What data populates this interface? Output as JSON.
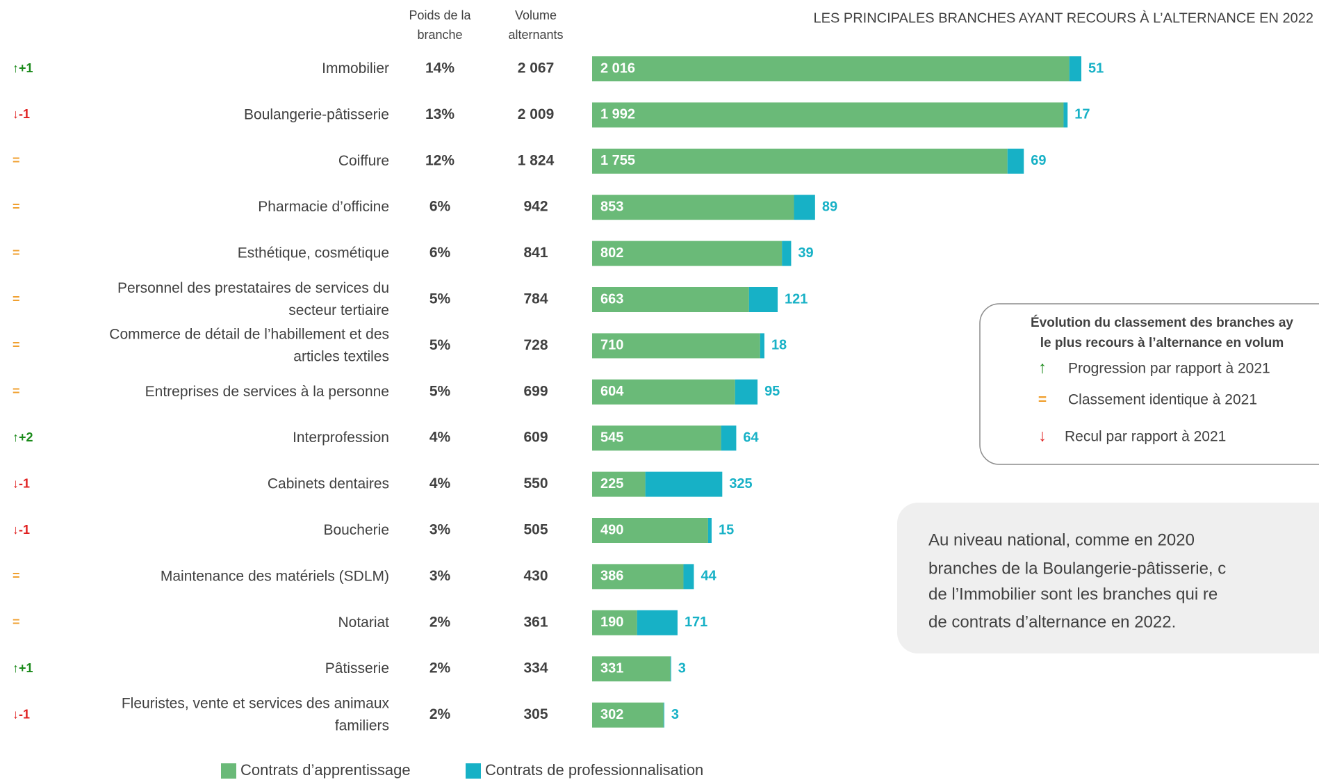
{
  "chart_data": {
    "type": "bar",
    "title": "LES PRINCIPALES BRANCHES AYANT RECOURS À L’ALTERNANCE EN 2022",
    "column_headers": {
      "poids": [
        "Poids de la",
        "branche"
      ],
      "volume": [
        "Volume",
        "alternants"
      ]
    },
    "categories": [
      "Immobilier",
      "Boulangerie-pâtisserie",
      "Coiffure",
      "Pharmacie d’officine",
      "Esthétique, cosmétique",
      "Personnel des prestataires de services du\nsecteur tertiaire",
      "Commerce de détail de l’habillement et des\narticles textiles",
      "Entreprises de services à la personne",
      "Interprofession",
      "Cabinets dentaires",
      "Boucherie",
      "Maintenance des matériels (SDLM)",
      "Notariat",
      "Pâtisserie",
      "Fleuristes, vente et services des animaux\nfamiliers"
    ],
    "rank_change": [
      "↑+1",
      "↓-1",
      "=",
      "=",
      "=",
      "=",
      "=",
      "=",
      "↑+2",
      "↓-1",
      "↓-1",
      "=",
      "=",
      "↑+1",
      "↓-1"
    ],
    "poids": [
      "14%",
      "13%",
      "12%",
      "6%",
      "6%",
      "5%",
      "5%",
      "5%",
      "4%",
      "4%",
      "3%",
      "3%",
      "2%",
      "2%",
      "2%"
    ],
    "volume": [
      "2 067",
      "2 009",
      "1 824",
      "942",
      "841",
      "784",
      "728",
      "699",
      "609",
      "550",
      "505",
      "430",
      "361",
      "334",
      "305"
    ],
    "series": [
      {
        "name": "Contrats d’apprentissage",
        "color": "#6aba78",
        "values": [
          2016,
          1992,
          1755,
          853,
          802,
          663,
          710,
          604,
          545,
          225,
          490,
          386,
          190,
          331,
          302
        ],
        "value_labels": [
          "2 016",
          "1 992",
          "1 755",
          "853",
          "802",
          "663",
          "710",
          "604",
          "545",
          "225",
          "490",
          "386",
          "190",
          "331",
          "302"
        ]
      },
      {
        "name": "Contrats de professionnalisation",
        "color": "#17b1c6",
        "values": [
          51,
          17,
          69,
          89,
          39,
          121,
          18,
          95,
          64,
          325,
          15,
          44,
          171,
          3,
          3
        ]
      }
    ],
    "rank_legend": {
      "title": [
        "Évolution du classement des branches ay",
        "le plus recours à l’alternance en volum"
      ],
      "items": [
        "Progression par rapport à 2021",
        "Classement identique à 2021",
        "Recul par rapport à 2021"
      ]
    },
    "note": [
      "Au niveau national, comme en 2020",
      "branches de la Boulangerie-pâtisserie, c",
      "de l’Immobilier sont les branches qui re",
      "de contrats d’alternance en 2022."
    ]
  }
}
